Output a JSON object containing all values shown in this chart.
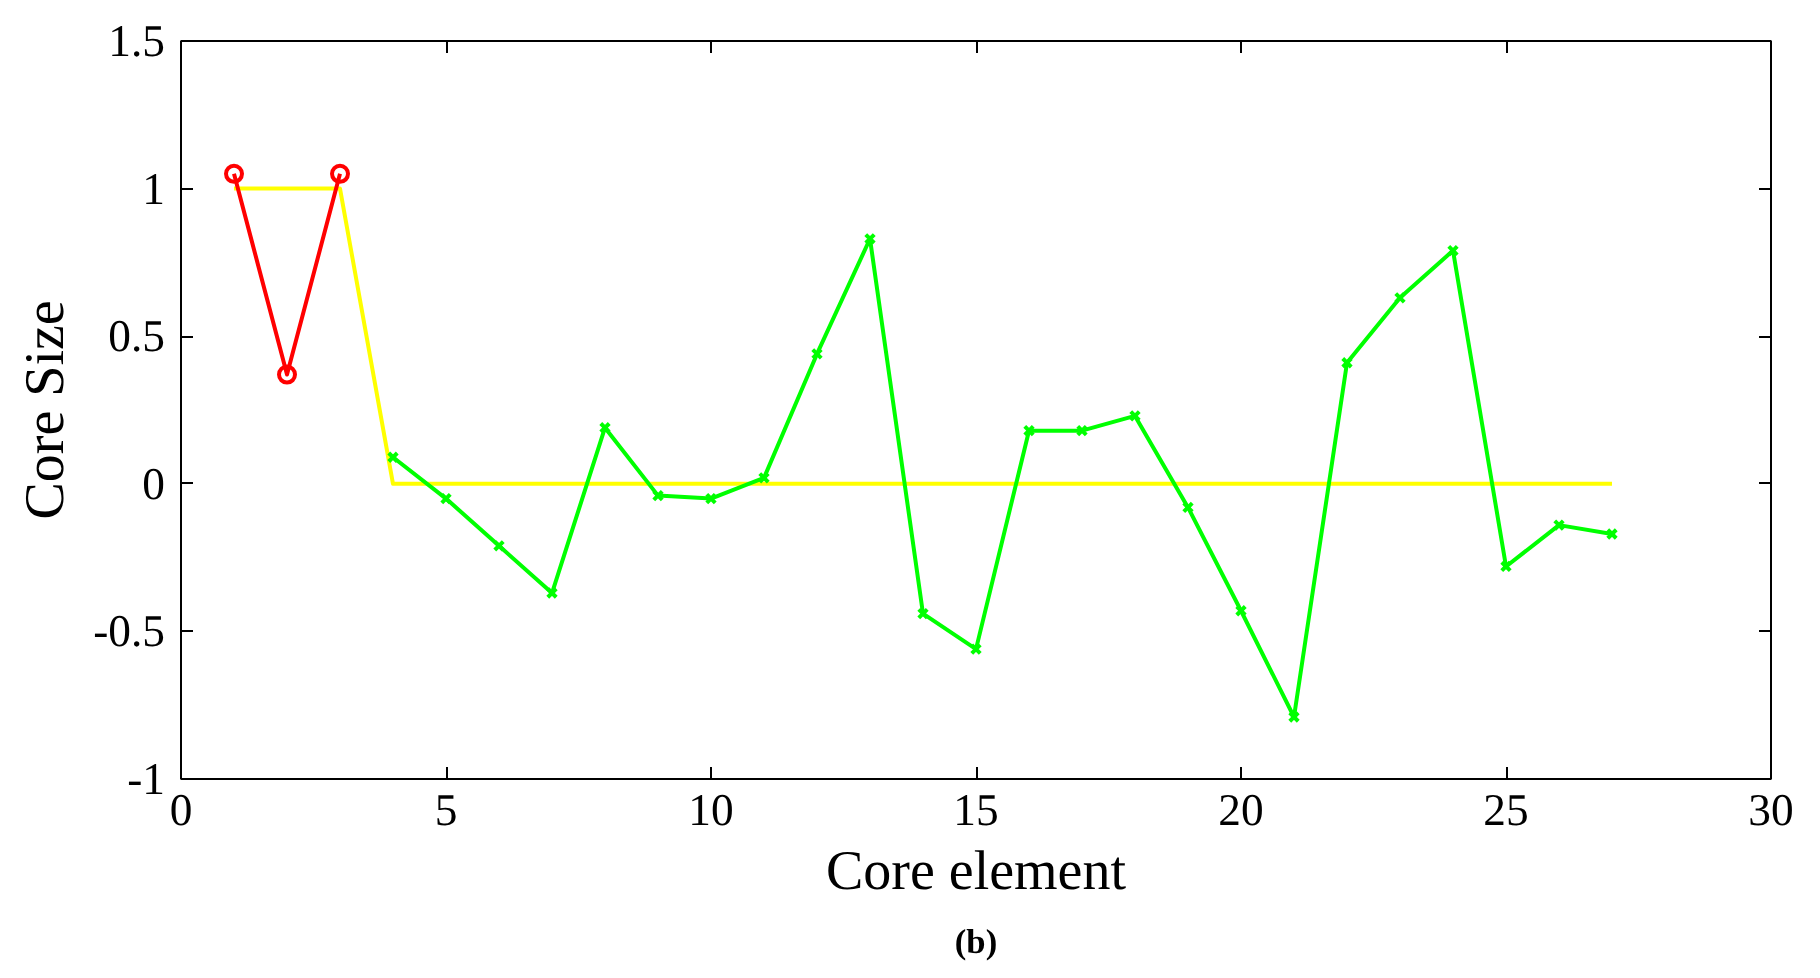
{
  "chart_data": {
    "type": "line",
    "xlabel": "Core element",
    "ylabel": "Core Size",
    "xlim": [
      0,
      30
    ],
    "ylim": [
      -1,
      1.5
    ],
    "xticks": [
      0,
      5,
      10,
      15,
      20,
      25,
      30
    ],
    "yticks": [
      -1,
      -0.5,
      0,
      0.5,
      1,
      1.5
    ],
    "grid": false,
    "annotations": [
      "(b)"
    ],
    "series": [
      {
        "color": "#ffff00",
        "marker": "none",
        "x": [
          1,
          2,
          3,
          4,
          5,
          6,
          7,
          8,
          9,
          10,
          11,
          12,
          13,
          14,
          15,
          16,
          17,
          18,
          19,
          20,
          21,
          22,
          23,
          24,
          25,
          26,
          27
        ],
        "values": [
          1,
          1,
          1,
          0,
          0,
          0,
          0,
          0,
          0,
          0,
          0,
          0,
          0,
          0,
          0,
          0,
          0,
          0,
          0,
          0,
          0,
          0,
          0,
          0,
          0,
          0,
          0
        ]
      },
      {
        "color": "#ff0000",
        "marker": "circle",
        "x": [
          1,
          2,
          3
        ],
        "values": [
          1.05,
          0.37,
          1.05
        ]
      },
      {
        "color": "#00ff00",
        "marker": "cross",
        "x": [
          4,
          5,
          6,
          7,
          8,
          9,
          10,
          11,
          12,
          13,
          14,
          15,
          16,
          17,
          18,
          19,
          20,
          21,
          22,
          23,
          24,
          25,
          26,
          27
        ],
        "values": [
          0.09,
          -0.05,
          -0.21,
          -0.37,
          0.19,
          -0.04,
          -0.05,
          0.02,
          0.44,
          0.83,
          -0.44,
          -0.56,
          0.18,
          0.18,
          0.23,
          -0.08,
          -0.43,
          -0.79,
          0.41,
          0.63,
          0.79,
          -0.28,
          -0.14,
          -0.17
        ]
      }
    ]
  }
}
